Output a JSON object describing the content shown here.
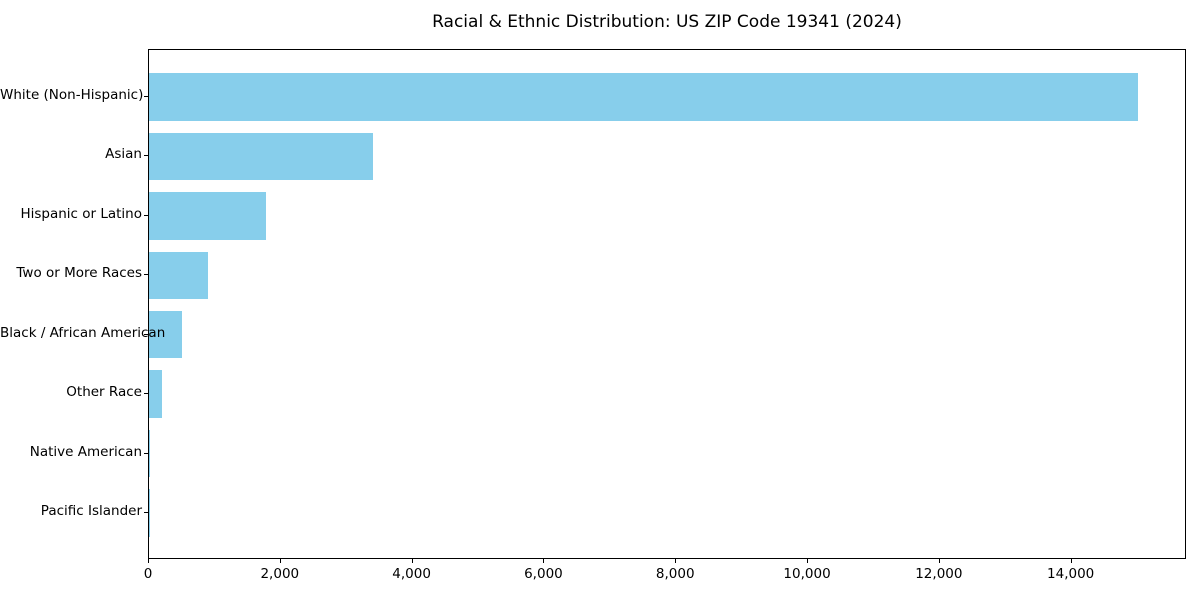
{
  "chart_data": {
    "type": "bar",
    "orientation": "horizontal",
    "title": "Racial & Ethnic Distribution: US ZIP Code 19341 (2024)",
    "categories": [
      "White (Non-Hispanic)",
      "Asian",
      "Hispanic or Latino",
      "Two or More Races",
      "Black / African American",
      "Other Race",
      "Native American",
      "Pacific Islander"
    ],
    "values": [
      15000,
      3400,
      1775,
      900,
      500,
      200,
      15,
      5
    ],
    "xlabel": "",
    "ylabel": "",
    "xlim": [
      0,
      15750
    ],
    "xticks": [
      0,
      2000,
      4000,
      6000,
      8000,
      10000,
      12000,
      14000
    ],
    "xtick_labels": [
      "0",
      "2,000",
      "4,000",
      "6,000",
      "8,000",
      "10,000",
      "12,000",
      "14,000"
    ],
    "bar_color": "#87CEEB",
    "spine_color": "#000000",
    "text_color": "#000000",
    "background_color": "#ffffff",
    "grid": false,
    "legend": null
  }
}
